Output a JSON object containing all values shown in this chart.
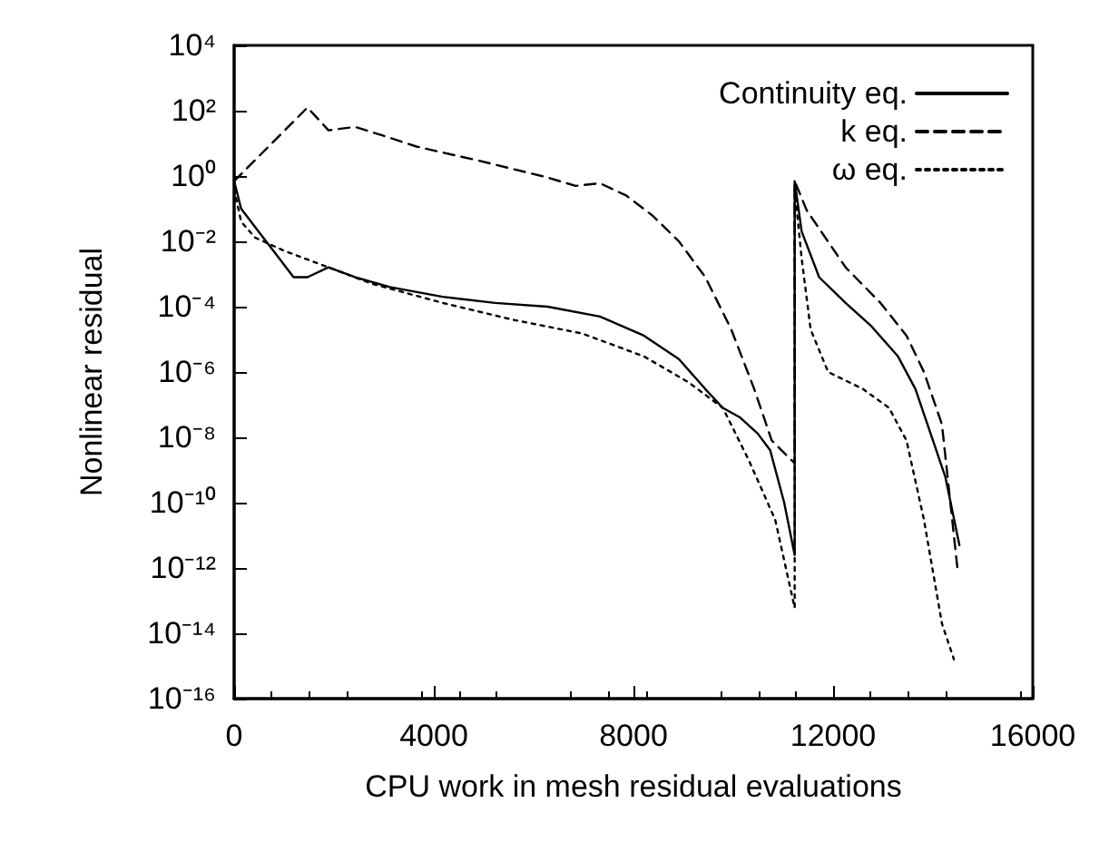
{
  "chart_data": {
    "type": "line",
    "xlabel": "CPU work in mesh residual evaluations",
    "ylabel": "Nonlinear residual",
    "log": "y",
    "grid": false,
    "legend": "top right",
    "marker": "none",
    "xlim": [
      0,
      16000
    ],
    "xticks": [
      0,
      4000,
      8000,
      12000,
      16000
    ],
    "ylim": [
      1e-16,
      10000.0
    ],
    "yticks": [
      {
        "value": 1e-16,
        "label": "10⁻¹⁶"
      },
      {
        "value": 1e-14,
        "label": "10⁻¹⁴"
      },
      {
        "value": 1e-12,
        "label": "10⁻¹²"
      },
      {
        "value": 1e-10,
        "label": "10⁻¹⁰"
      },
      {
        "value": 1e-08,
        "label": "10⁻⁸"
      },
      {
        "value": 1e-06,
        "label": "10⁻⁶"
      },
      {
        "value": 0.0001,
        "label": "10⁻⁴"
      },
      {
        "value": 0.01,
        "label": "10⁻²"
      },
      {
        "value": 1,
        "label": "10⁰"
      },
      {
        "value": 100,
        "label": "10²"
      },
      {
        "value": 10000,
        "label": "10⁴"
      }
    ],
    "series": [
      {
        "name": "Continuity eq.",
        "color": "#000000",
        "line_style": "solid",
        "x": [
          0,
          140,
          490,
          840,
          1190,
          1470,
          1890,
          2420,
          3120,
          4180,
          5230,
          6280,
          7330,
          8210,
          8910,
          9440,
          9790,
          10140,
          10490,
          10740,
          11020,
          11230,
          11230,
          11370,
          11720,
          12250,
          12770,
          13300,
          13650,
          14000,
          14250,
          14530
        ],
        "values": [
          0.7,
          0.1,
          0.02,
          0.004,
          0.0008,
          0.0008,
          0.0016,
          0.0008,
          0.0004,
          0.0002,
          0.00013,
          0.0001,
          5e-05,
          1.3e-05,
          2.5e-06,
          3e-07,
          8e-08,
          4e-08,
          1.3e-08,
          4e-09,
          1e-10,
          2.5e-12,
          0.7,
          0.02,
          0.0008,
          0.00013,
          2.5e-05,
          3e-06,
          3e-07,
          8e-09,
          6e-10,
          5e-12
        ]
      },
      {
        "name": "k eq.",
        "color": "#000000",
        "line_style": "dashed",
        "x": [
          0,
          1470,
          1890,
          2420,
          3050,
          3650,
          4880,
          6280,
          6840,
          7330,
          7860,
          8390,
          8910,
          9440,
          9960,
          10420,
          10770,
          11230,
          11230,
          11470,
          12250,
          12950,
          13470,
          13820,
          14180,
          14490
        ],
        "values": [
          0.7,
          125,
          25,
          32,
          16,
          8,
          3,
          0.9,
          0.5,
          0.6,
          0.25,
          0.06,
          0.01,
          0.0008,
          2e-05,
          3e-07,
          8e-09,
          1.6e-09,
          0.7,
          0.09,
          0.0016,
          0.00013,
          1.3e-05,
          1e-06,
          2.5e-08,
          1e-12
        ]
      },
      {
        "name": "ω eq.",
        "color": "#000000",
        "line_style": "dotted",
        "x": [
          0,
          140,
          420,
          1020,
          1890,
          2770,
          4180,
          5580,
          6980,
          8210,
          9090,
          9790,
          10310,
          10840,
          11230,
          11230,
          11370,
          11550,
          11900,
          12600,
          13120,
          13470,
          13820,
          14180,
          14420
        ],
        "values": [
          0.4,
          0.04,
          0.013,
          0.005,
          0.0016,
          0.0005,
          0.00013,
          4e-05,
          1.5e-05,
          3e-06,
          5e-07,
          8e-08,
          2e-09,
          3e-11,
          6e-14,
          0.4,
          0.003,
          2e-05,
          1e-06,
          3e-07,
          8e-08,
          8e-09,
          3e-11,
          2e-14,
          1.6e-15
        ]
      }
    ]
  }
}
